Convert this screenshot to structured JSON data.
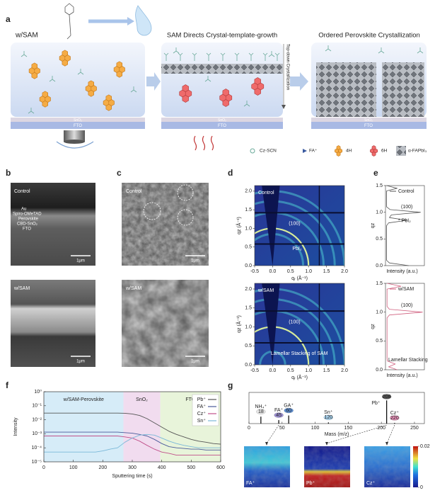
{
  "panel_labels": [
    "a",
    "b",
    "c",
    "d",
    "e",
    "f",
    "g"
  ],
  "panel_a": {
    "titles": [
      "w/SAM",
      "SAM Directs Crystal-template-growth",
      "Ordered Perovskite Crystallization"
    ],
    "side_label": "Top-down Crystallization",
    "layers": [
      "SnO₂",
      "FTO"
    ],
    "legend": [
      "Cz-SCN",
      "FA⁺",
      "4H",
      "6H",
      "α-FAPbI₃"
    ]
  },
  "panel_b": {
    "control": {
      "label": "Control",
      "layers": [
        "Au",
        "Spiro-OMeTAD",
        "Perovskite",
        "CBD-SnO₂",
        "FTO"
      ],
      "scale_bar": "1μm"
    },
    "sam": {
      "label": "w/SAM",
      "scale_bar": "1μm"
    }
  },
  "panel_c": {
    "control": {
      "label": "Control",
      "scale_bar": "1μm"
    },
    "sam": {
      "label": "w/SAM",
      "scale_bar": "1μm"
    }
  },
  "chart_data": [
    {
      "type": "heatmap",
      "label": "Control",
      "annotations": [
        "(100)",
        "PbI₂"
      ],
      "xlabel": "qᵣ (Å⁻¹)",
      "ylabel": "qz (Å⁻¹)",
      "xlim": [
        -0.5,
        2.0
      ],
      "ylim": [
        0,
        2.15
      ],
      "xticks": [
        {
          "value": -0.5,
          "label": "-0.5"
        },
        {
          "value": 0,
          "label": "0.0"
        },
        {
          "value": 0.5,
          "label": "0.5"
        },
        {
          "value": 1,
          "label": "1.0"
        },
        {
          "value": 1.5,
          "label": "1.5"
        },
        {
          "value": 2,
          "label": "2.0"
        }
      ],
      "yticks": [
        {
          "value": 0,
          "label": "0.0"
        },
        {
          "value": 0.5,
          "label": "0.5"
        },
        {
          "value": 1,
          "label": "1.0"
        },
        {
          "value": 1.5,
          "label": "1.5"
        },
        {
          "value": 2,
          "label": "2.0"
        }
      ],
      "ring_q": [
        0.85,
        1.0,
        1.42,
        1.73,
        2.0
      ]
    },
    {
      "type": "heatmap",
      "label": "w/SAM",
      "annotations": [
        "(100)",
        "Lamellar Stacking of SAM"
      ],
      "xlabel": "qᵣ (Å⁻¹)",
      "ylabel": "qz (Å⁻¹)",
      "xlim": [
        -0.5,
        2.0
      ],
      "ylim": [
        0,
        2.15
      ],
      "xticks": [
        {
          "value": -0.5,
          "label": "-0.5"
        },
        {
          "value": 0,
          "label": "0.0"
        },
        {
          "value": 0.5,
          "label": "0.5"
        },
        {
          "value": 1,
          "label": "1.0"
        },
        {
          "value": 1.5,
          "label": "1.5"
        },
        {
          "value": 2,
          "label": "2.0"
        }
      ],
      "yticks": [
        {
          "value": 0,
          "label": "0.0"
        },
        {
          "value": 0.5,
          "label": "0.5"
        },
        {
          "value": 1,
          "label": "1.0"
        },
        {
          "value": 1.5,
          "label": "1.5"
        },
        {
          "value": 2,
          "label": "2.0"
        }
      ],
      "ring_q": [
        0.35,
        1.0,
        1.42,
        1.73,
        2.0
      ]
    },
    {
      "type": "profile",
      "xlabel": "qz",
      "ylabel": "Intensity (a.u.)",
      "x": [
        0,
        0.05,
        0.1,
        0.15,
        0.2,
        0.25,
        0.3,
        0.35,
        0.4,
        0.45,
        0.5,
        0.55,
        0.6,
        0.65,
        0.7,
        0.75,
        0.8,
        0.85,
        0.9,
        0.95,
        1.0,
        1.05,
        1.1,
        1.15,
        1.2,
        1.25,
        1.3,
        1.35,
        1.4,
        1.45,
        1.5
      ],
      "xlim": [
        0,
        1.5
      ],
      "xticks": [
        {
          "value": 0,
          "label": "0.0"
        },
        {
          "value": 0.5,
          "label": "0.5"
        },
        {
          "value": 1,
          "label": "1.0"
        },
        {
          "value": 1.5,
          "label": "1.5"
        }
      ],
      "ylim": [
        0,
        1
      ],
      "series": [
        {
          "name": "Control",
          "color": "#555555",
          "values": [
            0.6,
            0.1,
            0.03,
            0.03,
            0.03,
            0.03,
            0.03,
            0.03,
            0.03,
            0.03,
            0.03,
            0.03,
            0.03,
            0.03,
            0.03,
            0.03,
            0.08,
            0.55,
            0.1,
            0.15,
            0.9,
            0.12,
            0.03,
            0.03,
            0.03,
            0.03,
            0.03,
            0.03,
            0.03,
            0.3,
            0.03
          ]
        }
      ],
      "annotations": [
        "(100)",
        "* PbI₂"
      ]
    },
    {
      "type": "profile",
      "xlabel": "qz",
      "ylabel": "Intensity (a.u.)",
      "x": [
        0,
        0.05,
        0.1,
        0.15,
        0.2,
        0.25,
        0.3,
        0.35,
        0.4,
        0.45,
        0.5,
        0.55,
        0.6,
        0.65,
        0.7,
        0.75,
        0.8,
        0.85,
        0.9,
        0.95,
        1.0,
        1.05,
        1.1,
        1.15,
        1.2,
        1.25,
        1.3,
        1.35,
        1.4,
        1.45,
        1.5
      ],
      "xlim": [
        0,
        1.5
      ],
      "xticks": [
        {
          "value": 0,
          "label": "0.0"
        },
        {
          "value": 0.5,
          "label": "0.5"
        },
        {
          "value": 1,
          "label": "1.0"
        },
        {
          "value": 1.5,
          "label": "1.5"
        }
      ],
      "ylim": [
        0,
        1
      ],
      "series": [
        {
          "name": "w/SAM",
          "color": "#d0607f",
          "values": [
            0.3,
            0.08,
            0.25,
            0.05,
            0.04,
            0.04,
            0.04,
            0.04,
            0.04,
            0.04,
            0.04,
            0.04,
            0.04,
            0.04,
            0.04,
            0.04,
            0.04,
            0.04,
            0.04,
            0.1,
            0.95,
            0.1,
            0.04,
            0.04,
            0.04,
            0.04,
            0.04,
            0.04,
            0.04,
            0.4,
            0.04
          ]
        }
      ],
      "annotations": [
        "(100)",
        "Lamellar Stacking"
      ]
    },
    {
      "type": "line",
      "xlabel": "Sputtering time (s)",
      "ylabel": "Intensity",
      "log_scale": true,
      "xlim": [
        0,
        600
      ],
      "xticks": [
        0,
        100,
        200,
        300,
        400,
        500,
        600
      ],
      "ylim": [
        1e-05,
        1
      ],
      "yticks": [
        {
          "value": 1,
          "label": "10⁰"
        },
        {
          "value": 0.1,
          "label": "10⁻¹"
        },
        {
          "value": 0.01,
          "label": "10⁻²"
        },
        {
          "value": 0.001,
          "label": "10⁻³"
        },
        {
          "value": 0.0001,
          "label": "10⁻⁴"
        },
        {
          "value": 1e-05,
          "label": "10⁻⁵"
        }
      ],
      "legend": "upper right",
      "regions": [
        {
          "name": "w/SAM-Perovskite",
          "range": [
            0,
            270
          ],
          "color": "#d6ecf8"
        },
        {
          "name": "SnO₂",
          "range": [
            270,
            395
          ],
          "color": "#f1dcef"
        },
        {
          "name": "FTO",
          "range": [
            395,
            600
          ],
          "color": "#e8f4da"
        }
      ],
      "x": [
        0,
        25,
        50,
        75,
        100,
        125,
        150,
        175,
        200,
        225,
        250,
        275,
        300,
        325,
        350,
        375,
        400,
        425,
        450,
        475,
        500,
        525,
        550,
        575,
        600
      ],
      "series": [
        {
          "name": "Pb⁺",
          "color": "#555555",
          "values": [
            0.03,
            0.03,
            0.03,
            0.03,
            0.03,
            0.03,
            0.03,
            0.03,
            0.03,
            0.03,
            0.03,
            0.029,
            0.026,
            0.02,
            0.012,
            0.006,
            0.003,
            0.0015,
            0.0009,
            0.0006,
            0.0004,
            0.0003,
            0.00025,
            0.0002,
            0.00018
          ]
        },
        {
          "name": "FA⁺",
          "color": "#4a5a9a",
          "values": [
            0.0013,
            0.0013,
            0.0013,
            0.0013,
            0.0013,
            0.0013,
            0.0013,
            0.0013,
            0.0013,
            0.0013,
            0.0013,
            0.0012,
            0.0011,
            0.0009,
            0.0007,
            0.0004,
            0.0002,
            0.00012,
            0.0001,
            9e-05,
            8e-05,
            8e-05,
            7e-05,
            7e-05,
            7e-05
          ]
        },
        {
          "name": "Cz⁺",
          "color": "#c0508a",
          "values": [
            0.0007,
            0.0007,
            0.0007,
            0.0007,
            0.0007,
            0.0007,
            0.0007,
            0.0007,
            0.0007,
            0.0007,
            0.0007,
            0.0006,
            0.0005,
            0.0003,
            0.00015,
            8e-05,
            5e-05,
            4e-05,
            3e-05,
            3e-05,
            3e-05,
            3e-05,
            3e-05,
            3e-05,
            3e-05
          ]
        },
        {
          "name": "Sn⁺",
          "color": "#7ab8d8",
          "values": [
            5e-05,
            5e-05,
            5e-05,
            5e-05,
            5e-05,
            5e-05,
            5e-05,
            5e-05,
            6e-05,
            8e-05,
            0.0001,
            0.00025,
            0.0005,
            0.0008,
            0.0009,
            0.0008,
            0.0005,
            0.0003,
            0.0002,
            0.00015,
            0.00012,
            0.0001,
            0.0001,
            0.0001,
            0.0001
          ]
        }
      ]
    },
    {
      "type": "spectrum",
      "xlabel": "Mass (m/z)",
      "xlim": [
        0,
        265
      ],
      "xticks": [
        0,
        50,
        100,
        150,
        200,
        250
      ],
      "ylim": [
        0,
        1.1
      ],
      "x": [
        18,
        45,
        60,
        120,
        208,
        220
      ],
      "values": [
        0.3,
        0.15,
        0.35,
        0.05,
        1.0,
        0.03
      ],
      "peak_labels": [
        "NH₄⁺",
        "FA⁺",
        "GA⁺",
        "Sn⁺",
        "Pb⁺",
        "Cz⁺"
      ],
      "colors": [
        "#e6e6e6",
        "#9b8fd0",
        "#5b8ccf",
        "#a9d3ef",
        "#555555",
        "#e58fb6"
      ],
      "maps": [
        "FA⁺",
        "Pb⁺",
        "Cz⁺"
      ],
      "colorbar_ticks": [
        0.02,
        0
      ]
    }
  ]
}
